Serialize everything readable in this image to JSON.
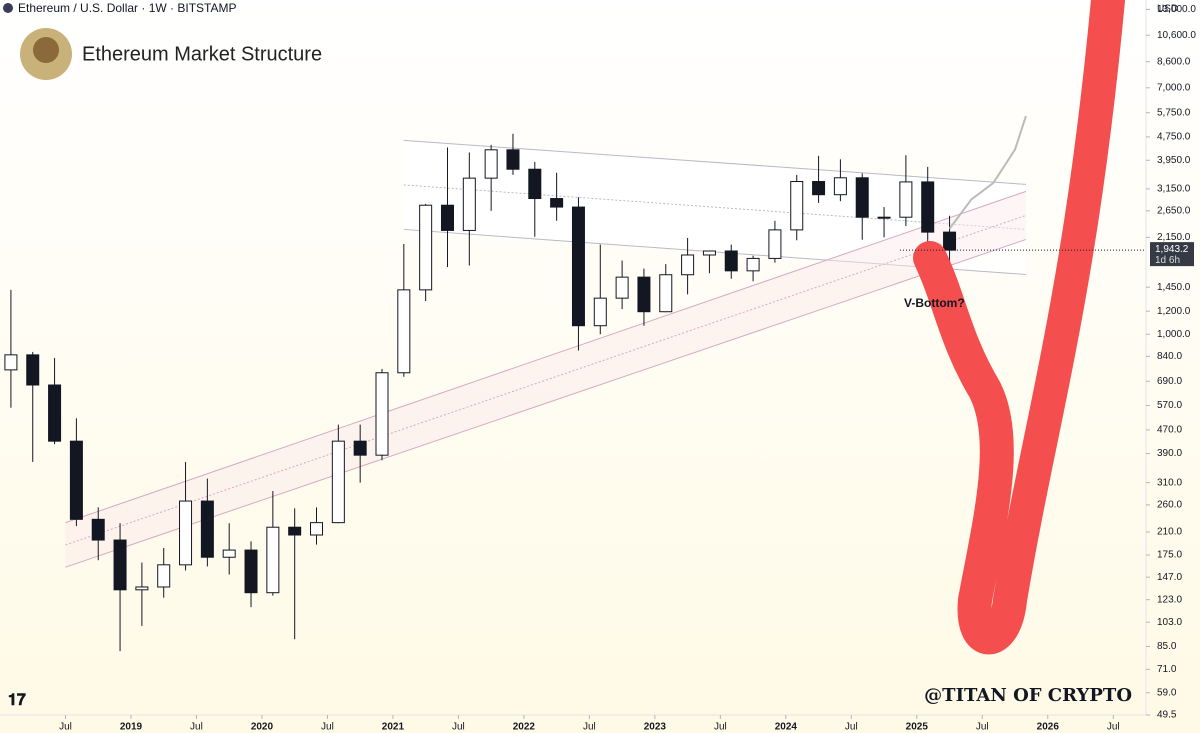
{
  "header": "Ethereum / U.S. Dollar · 1W · BITSTAMP",
  "currency": "USD",
  "chart_data": {
    "type": "candlestick",
    "title": "Ethereum Market Structure",
    "x": [
      "2018-01",
      "2018-03",
      "2018-05",
      "2018-07",
      "2018-09",
      "2018-11",
      "2019-01",
      "2019-03",
      "2019-05",
      "2019-07",
      "2019-09",
      "2019-11",
      "2020-01",
      "2020-03",
      "2020-05",
      "2020-07",
      "2020-09",
      "2020-11",
      "2021-01",
      "2021-03",
      "2021-05",
      "2021-07",
      "2021-09",
      "2021-11",
      "2022-01",
      "2022-03",
      "2022-05",
      "2022-07",
      "2022-09",
      "2022-11",
      "2023-01",
      "2023-03",
      "2023-05",
      "2023-07",
      "2023-09",
      "2023-11",
      "2024-01",
      "2024-03",
      "2024-05",
      "2024-07",
      "2024-09",
      "2024-11",
      "2025-01",
      "2025-03"
    ],
    "open": [
      755,
      850,
      670,
      430,
      232,
      197,
      133,
      136,
      162,
      268,
      172,
      182,
      130,
      218,
      205,
      226,
      430,
      385,
      738,
      1420,
      2770,
      2270,
      3430,
      4290,
      3680,
      2920,
      2730,
      1070,
      1330,
      1570,
      1195,
      1600,
      1870,
      1930,
      1650,
      1820,
      2280,
      3340,
      3010,
      3440,
      2520,
      2520,
      3330,
      2240
    ],
    "high": [
      1420,
      870,
      830,
      515,
      255,
      225,
      165,
      185,
      365,
      320,
      225,
      195,
      290,
      253,
      255,
      490,
      490,
      760,
      2040,
      2800,
      4370,
      4200,
      4460,
      4870,
      3900,
      3580,
      2950,
      2030,
      1790,
      1680,
      1740,
      2140,
      1930,
      2030,
      1860,
      2450,
      3520,
      4090,
      3980,
      3560,
      2730,
      4110,
      3750,
      2550
    ],
    "low": [
      560,
      365,
      420,
      220,
      168,
      82,
      100,
      125,
      155,
      160,
      150,
      116,
      127,
      90,
      190,
      225,
      310,
      370,
      715,
      1300,
      1700,
      1720,
      2650,
      3520,
      2160,
      2450,
      880,
      1000,
      1220,
      1070,
      1190,
      1370,
      1620,
      1550,
      1520,
      1760,
      2100,
      2820,
      2860,
      2110,
      2150,
      2350,
      2080,
      1760
    ],
    "close": [
      850,
      670,
      430,
      232,
      197,
      133,
      136,
      162,
      268,
      172,
      182,
      130,
      218,
      205,
      226,
      430,
      385,
      738,
      1420,
      2770,
      2270,
      3430,
      4290,
      3680,
      2920,
      2730,
      1070,
      1330,
      1570,
      1195,
      1600,
      1870,
      1930,
      1650,
      1820,
      2280,
      3340,
      3010,
      3440,
      2520,
      2520,
      3330,
      2240,
      1943.2
    ],
    "up_color": "#ffffff",
    "down_color": "#131722",
    "projection": {
      "x": [
        "2025-04",
        "2025-06",
        "2025-08",
        "2025-10",
        "2025-11"
      ],
      "values": [
        2300,
        2900,
        3300,
        4300,
        5600
      ],
      "color": "#bbbbbb"
    },
    "channels": [
      {
        "x": [
          "2021-02",
          "2025-11"
        ],
        "upper": [
          4620,
          3265
        ],
        "lower": [
          2288,
          1603
        ],
        "color": "#b9b9c8"
      },
      {
        "x": [
          "2018-07",
          "2025-11"
        ],
        "upper": [
          226,
          3090
        ],
        "lower": [
          159,
          2114
        ],
        "color": "#d6a9c4"
      }
    ],
    "annotation": "V-Bottom?",
    "watermark": "@TITAN OF CRYPTO",
    "last_price": {
      "value": 1943.2,
      "label": "1,943.2"
    },
    "countdown": "1d 6h",
    "log_scale": true,
    "ylim": [
      49.5,
      14000
    ],
    "yticks": [
      {
        "value": 13000,
        "label": "13,000.0"
      },
      {
        "value": 10600,
        "label": "10,600.0"
      },
      {
        "value": 8600,
        "label": "8,600.0"
      },
      {
        "value": 7000,
        "label": "7,000.0"
      },
      {
        "value": 5750,
        "label": "5,750.0"
      },
      {
        "value": 4750,
        "label": "4,750.0"
      },
      {
        "value": 3950,
        "label": "3,950.0"
      },
      {
        "value": 3150,
        "label": "3,150.0"
      },
      {
        "value": 2650,
        "label": "2,650.0"
      },
      {
        "value": 2150,
        "label": "2,150.0"
      },
      {
        "value": 1450,
        "label": "1,450.0"
      },
      {
        "value": 1200,
        "label": "1,200.0"
      },
      {
        "value": 1000,
        "label": "1,000.0"
      },
      {
        "value": 840,
        "label": "840.0"
      },
      {
        "value": 690,
        "label": "690.0"
      },
      {
        "value": 570,
        "label": "570.0"
      },
      {
        "value": 470,
        "label": "470.0"
      },
      {
        "value": 390,
        "label": "390.0"
      },
      {
        "value": 310,
        "label": "310.0"
      },
      {
        "value": 260,
        "label": "260.0"
      },
      {
        "value": 210,
        "label": "210.0"
      },
      {
        "value": 175,
        "label": "175.0"
      },
      {
        "value": 147,
        "label": "147.0"
      },
      {
        "value": 123,
        "label": "123.0"
      },
      {
        "value": 103,
        "label": "103.0"
      },
      {
        "value": 85,
        "label": "85.0"
      },
      {
        "value": 71,
        "label": "71.0"
      },
      {
        "value": 59,
        "label": "59.0"
      },
      49.5
    ],
    "xlim": [
      "2018-01",
      "2026-10"
    ],
    "xticks": [
      {
        "value": "2018-07",
        "label": "Jul"
      },
      {
        "value": "2019-01",
        "label": "2019"
      },
      {
        "value": "2019-07",
        "label": "Jul"
      },
      {
        "value": "2020-01",
        "label": "2020"
      },
      {
        "value": "2020-07",
        "label": "Jul"
      },
      {
        "value": "2021-01",
        "label": "2021"
      },
      {
        "value": "2021-07",
        "label": "Jul"
      },
      {
        "value": "2022-01",
        "label": "2022"
      },
      {
        "value": "2022-07",
        "label": "Jul"
      },
      {
        "value": "2023-01",
        "label": "2023"
      },
      {
        "value": "2023-07",
        "label": "Jul"
      },
      {
        "value": "2024-01",
        "label": "2024"
      },
      {
        "value": "2024-07",
        "label": "Jul"
      },
      {
        "value": "2025-01",
        "label": "2025"
      },
      {
        "value": "2025-07",
        "label": "Jul"
      },
      {
        "value": "2026-01",
        "label": "2026"
      },
      {
        "value": "2026-07",
        "label": "Jul"
      }
    ]
  }
}
